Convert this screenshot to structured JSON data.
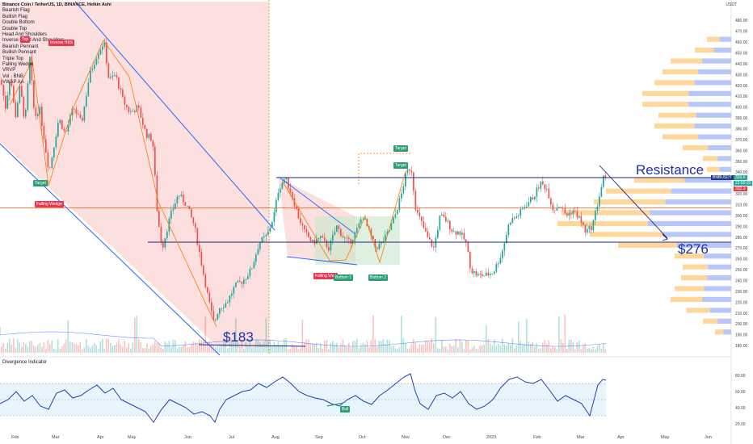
{
  "header": {
    "title": "Binance Coin / TetherUS, 1D, BINANCE, Heikin Ashi",
    "indicators": [
      "Bearish Flag",
      "Bullish Flag",
      "Double Bottom",
      "Double Top",
      "Head And Shoulders",
      "Inverse Head And Shoulders",
      "Bearish Pennant",
      "Bullish Pennant",
      "Triple Top",
      "Falling Wedge",
      "VRVP",
      "Vol · BNB",
      "VWAP AA"
    ],
    "currency": "USDT"
  },
  "annotations": {
    "resistance": "Resistance",
    "support_276": "$276",
    "low_183": "$183",
    "target_1": "Target",
    "target_2": "Target",
    "target_3": "Target",
    "falling_wedge_1": "Falling Wedge",
    "falling_wedge_2": "Falling Wed",
    "bottom_1": "Bottom 1",
    "bottom_2": "Bottom 2",
    "top": "Top",
    "inverse_hs": "Inverse H&S",
    "bull": "Bull",
    "symbol_tag": "BNBUSDT",
    "price_1": "333.6",
    "countdown": "22:50:20",
    "price_2": "332.3"
  },
  "oscillator": {
    "title": "Divergence Indicator"
  },
  "colors": {
    "up": "#26a69a",
    "down": "#ef5350",
    "channel": "#2962ff",
    "wedge": "#f57c00",
    "red_fill": "#f7c6c5",
    "green_fill": "#c8e6c9",
    "vp_blue": "#b7c7f8",
    "vp_orange": "#ffd08a",
    "label_blue": "#1c2fa6"
  },
  "chart_data": {
    "type": "candlestick",
    "y_axis": {
      "ticks": [
        180,
        190,
        200,
        210,
        220,
        230,
        240,
        250,
        260,
        270,
        280,
        290,
        300,
        310,
        320,
        330,
        340,
        350,
        360,
        370,
        380,
        390,
        400,
        410,
        420,
        430,
        440,
        450,
        460,
        470,
        480
      ],
      "range": [
        175,
        490
      ]
    },
    "x_axis": {
      "ticks": [
        "Feb",
        "Mar",
        "Apr",
        "May",
        "Jun",
        "Jul",
        "Aug",
        "Sep",
        "Oct",
        "Nov",
        "Dec",
        "2023",
        "Feb",
        "Mar",
        "Apr",
        "May",
        "Jun"
      ]
    },
    "price_path": [
      [
        0,
        425
      ],
      [
        6,
        400
      ],
      [
        12,
        430
      ],
      [
        18,
        390
      ],
      [
        24,
        420
      ],
      [
        30,
        385
      ],
      [
        36,
        445
      ],
      [
        42,
        390
      ],
      [
        48,
        400
      ],
      [
        54,
        370
      ],
      [
        60,
        340
      ],
      [
        66,
        365
      ],
      [
        72,
        390
      ],
      [
        80,
        375
      ],
      [
        90,
        400
      ],
      [
        100,
        385
      ],
      [
        110,
        430
      ],
      [
        120,
        450
      ],
      [
        128,
        460
      ],
      [
        134,
        425
      ],
      [
        142,
        430
      ],
      [
        152,
        405
      ],
      [
        160,
        395
      ],
      [
        170,
        400
      ],
      [
        180,
        375
      ],
      [
        188,
        370
      ],
      [
        194,
        300
      ],
      [
        200,
        270
      ],
      [
        210,
        300
      ],
      [
        220,
        320
      ],
      [
        230,
        310
      ],
      [
        240,
        290
      ],
      [
        250,
        250
      ],
      [
        258,
        220
      ],
      [
        264,
        200
      ],
      [
        270,
        215
      ],
      [
        280,
        220
      ],
      [
        290,
        235
      ],
      [
        300,
        240
      ],
      [
        310,
        250
      ],
      [
        320,
        275
      ],
      [
        330,
        282
      ],
      [
        338,
        300
      ],
      [
        344,
        325
      ],
      [
        352,
        335
      ],
      [
        360,
        320
      ],
      [
        368,
        300
      ],
      [
        376,
        285
      ],
      [
        386,
        275
      ],
      [
        396,
        280
      ],
      [
        406,
        270
      ],
      [
        416,
        290
      ],
      [
        424,
        280
      ],
      [
        432,
        275
      ],
      [
        440,
        285
      ],
      [
        448,
        300
      ],
      [
        456,
        285
      ],
      [
        464,
        270
      ],
      [
        472,
        275
      ],
      [
        480,
        285
      ],
      [
        488,
        300
      ],
      [
        496,
        320
      ],
      [
        502,
        340
      ],
      [
        508,
        345
      ],
      [
        514,
        305
      ],
      [
        520,
        295
      ],
      [
        528,
        280
      ],
      [
        536,
        270
      ],
      [
        544,
        300
      ],
      [
        552,
        295
      ],
      [
        560,
        285
      ],
      [
        568,
        285
      ],
      [
        576,
        275
      ],
      [
        582,
        250
      ],
      [
        590,
        245
      ],
      [
        600,
        245
      ],
      [
        610,
        248
      ],
      [
        620,
        265
      ],
      [
        630,
        295
      ],
      [
        640,
        300
      ],
      [
        650,
        310
      ],
      [
        660,
        318
      ],
      [
        668,
        330
      ],
      [
        676,
        325
      ],
      [
        684,
        305
      ],
      [
        692,
        310
      ],
      [
        700,
        300
      ],
      [
        708,
        305
      ],
      [
        716,
        298
      ],
      [
        724,
        285
      ],
      [
        732,
        290
      ],
      [
        740,
        315
      ],
      [
        746,
        335
      ],
      [
        750,
        332
      ]
    ],
    "oscillator_path": [
      [
        0,
        45
      ],
      [
        10,
        50
      ],
      [
        20,
        60
      ],
      [
        30,
        48
      ],
      [
        40,
        55
      ],
      [
        50,
        42
      ],
      [
        60,
        38
      ],
      [
        70,
        58
      ],
      [
        80,
        62
      ],
      [
        90,
        52
      ],
      [
        100,
        55
      ],
      [
        110,
        62
      ],
      [
        120,
        68
      ],
      [
        130,
        58
      ],
      [
        140,
        64
      ],
      [
        150,
        50
      ],
      [
        160,
        45
      ],
      [
        170,
        40
      ],
      [
        180,
        35
      ],
      [
        190,
        22
      ],
      [
        200,
        38
      ],
      [
        210,
        50
      ],
      [
        220,
        45
      ],
      [
        230,
        40
      ],
      [
        240,
        32
      ],
      [
        250,
        35
      ],
      [
        260,
        30
      ],
      [
        266,
        22
      ],
      [
        272,
        38
      ],
      [
        280,
        50
      ],
      [
        290,
        55
      ],
      [
        300,
        60
      ],
      [
        310,
        62
      ],
      [
        320,
        70
      ],
      [
        330,
        65
      ],
      [
        340,
        72
      ],
      [
        350,
        78
      ],
      [
        360,
        70
      ],
      [
        370,
        60
      ],
      [
        380,
        55
      ],
      [
        390,
        52
      ],
      [
        400,
        50
      ],
      [
        410,
        45
      ],
      [
        420,
        42
      ],
      [
        430,
        50
      ],
      [
        440,
        55
      ],
      [
        450,
        48
      ],
      [
        460,
        44
      ],
      [
        470,
        55
      ],
      [
        480,
        62
      ],
      [
        490,
        70
      ],
      [
        500,
        78
      ],
      [
        508,
        82
      ],
      [
        514,
        60
      ],
      [
        520,
        45
      ],
      [
        530,
        38
      ],
      [
        540,
        55
      ],
      [
        550,
        58
      ],
      [
        560,
        52
      ],
      [
        570,
        60
      ],
      [
        580,
        45
      ],
      [
        590,
        38
      ],
      [
        600,
        42
      ],
      [
        610,
        50
      ],
      [
        620,
        65
      ],
      [
        630,
        75
      ],
      [
        640,
        78
      ],
      [
        650,
        72
      ],
      [
        660,
        70
      ],
      [
        670,
        75
      ],
      [
        680,
        62
      ],
      [
        690,
        48
      ],
      [
        700,
        55
      ],
      [
        710,
        50
      ],
      [
        720,
        45
      ],
      [
        730,
        30
      ],
      [
        740,
        68
      ],
      [
        746,
        75
      ],
      [
        750,
        74
      ]
    ],
    "oscillator_y_ticks": [
      20,
      40,
      60,
      80
    ],
    "oscillator_range": [
      15,
      90
    ]
  }
}
